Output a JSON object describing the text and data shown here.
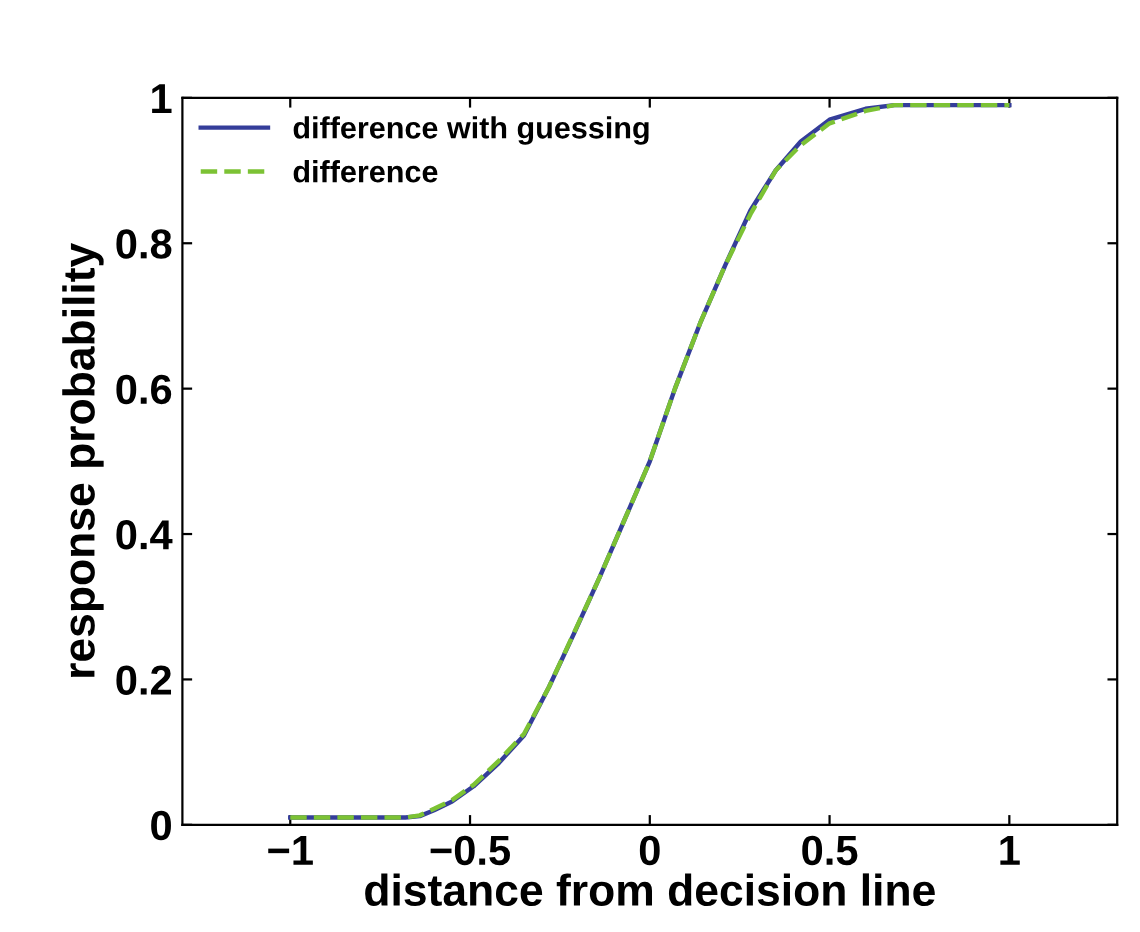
{
  "chart_data": {
    "type": "line",
    "xlabel": "distance from decision line",
    "ylabel": "response probability",
    "xlim": [
      -1.3,
      1.3
    ],
    "ylim": [
      0,
      1
    ],
    "xticks": [
      {
        "value": -1,
        "label": "−1"
      },
      {
        "value": -0.5,
        "label": "−0.5"
      },
      0,
      0.5,
      1
    ],
    "yticks": [
      0,
      0.2,
      0.4,
      0.6,
      0.8,
      1
    ],
    "grid": false,
    "legend": "top left",
    "series": [
      {
        "name": "difference with guessing",
        "color": "#343d9a",
        "line_style": "solid",
        "x": [
          -1,
          -0.68,
          -0.64,
          -0.6,
          -0.55,
          -0.49,
          -0.42,
          -0.35,
          -0.28,
          -0.21,
          -0.14,
          -0.07,
          0,
          0.07,
          0.14,
          0.21,
          0.28,
          0.35,
          0.42,
          0.5,
          0.6,
          0.68,
          1
        ],
        "values": [
          0.01,
          0.01,
          0.012,
          0.02,
          0.032,
          0.053,
          0.085,
          0.123,
          0.19,
          0.264,
          0.34,
          0.42,
          0.5,
          0.6,
          0.69,
          0.77,
          0.845,
          0.9,
          0.94,
          0.97,
          0.985,
          0.99,
          0.99
        ]
      },
      {
        "name": "difference",
        "color": "#7cc234",
        "line_style": "dashed",
        "x": [
          -1,
          -0.68,
          -0.64,
          -0.6,
          -0.55,
          -0.49,
          -0.42,
          -0.35,
          -0.28,
          -0.21,
          -0.14,
          -0.07,
          0,
          0.07,
          0.14,
          0.21,
          0.28,
          0.35,
          0.42,
          0.5,
          0.6,
          0.68,
          1
        ],
        "values": [
          0.01,
          0.01,
          0.013,
          0.022,
          0.034,
          0.055,
          0.088,
          0.125,
          0.19,
          0.265,
          0.34,
          0.42,
          0.5,
          0.6,
          0.69,
          0.77,
          0.84,
          0.9,
          0.935,
          0.965,
          0.982,
          0.99,
          0.99
        ]
      }
    ]
  }
}
